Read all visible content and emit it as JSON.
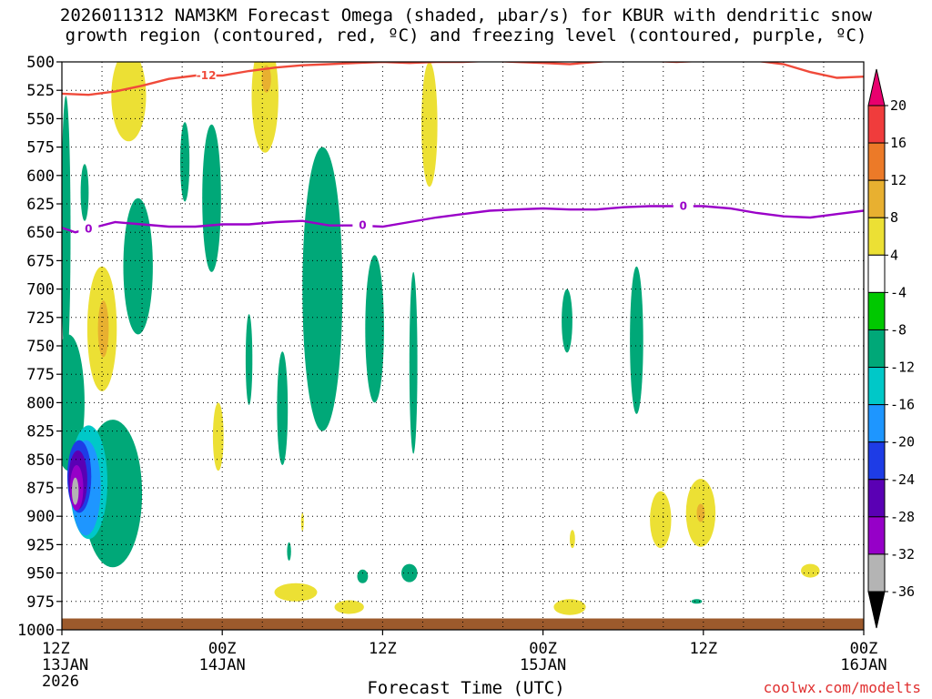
{
  "title_line1": "2026011312 NAM3KM Forecast Omega (shaded, μbar/s) for KBUR with dendritic snow",
  "title_line2": "growth region (contoured, red, ºC) and freezing level (contoured, purple, ºC)",
  "credit": "coolwx.com/modelts",
  "chart_data": {
    "type": "heatmap",
    "title": "2026011312 NAM3KM Forecast Omega (shaded, μbar/s) for KBUR with dendritic snow growth region (contoured, red, ºC) and freezing level (contoured, purple, ºC)",
    "xlabel": "Forecast Time (UTC)",
    "ylabel": "",
    "x_range_hours": [
      0,
      60
    ],
    "ylim_hPa": [
      1000,
      500
    ],
    "y_axis_inverted": true,
    "grid": true,
    "y_ticks": [
      "500",
      "525",
      "550",
      "575",
      "600",
      "625",
      "650",
      "675",
      "700",
      "725",
      "750",
      "775",
      "800",
      "825",
      "850",
      "875",
      "900",
      "925",
      "950",
      "975",
      "1000"
    ],
    "x_ticks": [
      {
        "hour": 0,
        "lines": [
          "12Z",
          "13JAN",
          "2026"
        ]
      },
      {
        "hour": 12,
        "lines": [
          "00Z",
          "14JAN"
        ]
      },
      {
        "hour": 24,
        "lines": [
          "12Z"
        ]
      },
      {
        "hour": 36,
        "lines": [
          "00Z",
          "15JAN"
        ]
      },
      {
        "hour": 48,
        "lines": [
          "12Z"
        ]
      },
      {
        "hour": 60,
        "lines": [
          "00Z",
          "16JAN"
        ]
      }
    ],
    "colorbar": {
      "levels": [
        "20",
        "16",
        "12",
        "8",
        "4",
        "-4",
        "-8",
        "-12",
        "-16",
        "-20",
        "-24",
        "-28",
        "-32",
        "-36"
      ],
      "colors": [
        "#e8006e",
        "#f03c3c",
        "#ec7a28",
        "#e8b030",
        "#ece034",
        "#ffffff",
        "#00c800",
        "#00a878",
        "#00c8c8",
        "#1e96ff",
        "#1e3ce6",
        "#5a00b4",
        "#9600c8",
        "#b4b4b4",
        "#000000"
      ]
    },
    "dendritic_contour": {
      "label": "-12",
      "color": "#f04a3a",
      "points": [
        [
          0,
          528
        ],
        [
          2,
          529
        ],
        [
          4,
          526
        ],
        [
          6,
          521
        ],
        [
          8,
          515
        ],
        [
          10,
          512
        ],
        [
          12,
          512
        ],
        [
          14,
          508
        ],
        [
          16,
          505
        ],
        [
          18,
          503
        ],
        [
          20,
          502
        ],
        [
          22,
          501
        ],
        [
          24,
          500
        ],
        [
          26,
          501
        ],
        [
          28,
          500
        ],
        [
          30,
          500
        ],
        [
          32,
          499
        ],
        [
          34,
          500
        ],
        [
          36,
          501
        ],
        [
          38,
          502
        ],
        [
          40,
          500
        ],
        [
          42,
          498
        ],
        [
          44,
          499
        ],
        [
          46,
          500
        ],
        [
          48,
          499
        ],
        [
          50,
          499
        ],
        [
          52,
          499
        ],
        [
          54,
          502
        ],
        [
          56,
          509
        ],
        [
          58,
          514
        ],
        [
          60,
          513
        ]
      ]
    },
    "freezing_contour": {
      "label": "0",
      "color": "#9a00c8",
      "points": [
        [
          0,
          646
        ],
        [
          1,
          650
        ],
        [
          2,
          647
        ],
        [
          4,
          641
        ],
        [
          6,
          643
        ],
        [
          8,
          645
        ],
        [
          10,
          645
        ],
        [
          12,
          643
        ],
        [
          14,
          643
        ],
        [
          16,
          641
        ],
        [
          18,
          640
        ],
        [
          20,
          644
        ],
        [
          22,
          644
        ],
        [
          24,
          645
        ],
        [
          26,
          641
        ],
        [
          28,
          637
        ],
        [
          30,
          634
        ],
        [
          32,
          631
        ],
        [
          34,
          630
        ],
        [
          36,
          629
        ],
        [
          38,
          630
        ],
        [
          40,
          630
        ],
        [
          42,
          628
        ],
        [
          44,
          627
        ],
        [
          46,
          627
        ],
        [
          48,
          627
        ],
        [
          50,
          629
        ],
        [
          52,
          633
        ],
        [
          54,
          636
        ],
        [
          56,
          637
        ],
        [
          58,
          634
        ],
        [
          60,
          631
        ]
      ]
    },
    "omega_regions": [
      {
        "level": "-8",
        "center": [
          0.3,
          650
        ],
        "half_width_h": 0.35,
        "half_height_hPa": 120
      },
      {
        "level": "-8",
        "center": [
          0.5,
          800
        ],
        "half_width_h": 1.2,
        "half_height_hPa": 60
      },
      {
        "level": "-8",
        "center": [
          3.8,
          880
        ],
        "half_width_h": 2.2,
        "half_height_hPa": 65
      },
      {
        "level": "-12",
        "center": [
          2.0,
          870
        ],
        "half_width_h": 1.4,
        "half_height_hPa": 50
      },
      {
        "level": "-16",
        "center": [
          1.8,
          875
        ],
        "half_width_h": 1.1,
        "half_height_hPa": 42
      },
      {
        "level": "-20",
        "center": [
          1.3,
          865
        ],
        "half_width_h": 0.9,
        "half_height_hPa": 32
      },
      {
        "level": "-24",
        "center": [
          1.2,
          868
        ],
        "half_width_h": 0.7,
        "half_height_hPa": 26
      },
      {
        "level": "-28",
        "center": [
          1.1,
          875
        ],
        "half_width_h": 0.5,
        "half_height_hPa": 20
      },
      {
        "level": "-32",
        "center": [
          1.0,
          878
        ],
        "half_width_h": 0.25,
        "half_height_hPa": 12
      },
      {
        "level": "-8",
        "center": [
          1.7,
          615
        ],
        "half_width_h": 0.3,
        "half_height_hPa": 25
      },
      {
        "level": "-8",
        "center": [
          5.7,
          680
        ],
        "half_width_h": 1.1,
        "half_height_hPa": 60
      },
      {
        "level": "-8",
        "center": [
          9.2,
          588
        ],
        "half_width_h": 0.35,
        "half_height_hPa": 35
      },
      {
        "level": "-8",
        "center": [
          11.2,
          620
        ],
        "half_width_h": 0.7,
        "half_height_hPa": 65
      },
      {
        "level": "-8",
        "center": [
          14.0,
          762
        ],
        "half_width_h": 0.25,
        "half_height_hPa": 40
      },
      {
        "level": "-8",
        "center": [
          16.5,
          805
        ],
        "half_width_h": 0.4,
        "half_height_hPa": 50
      },
      {
        "level": "-8",
        "center": [
          19.5,
          700
        ],
        "half_width_h": 1.5,
        "half_height_hPa": 125
      },
      {
        "level": "-8",
        "center": [
          23.4,
          735
        ],
        "half_width_h": 0.7,
        "half_height_hPa": 65
      },
      {
        "level": "-8",
        "center": [
          26.3,
          765
        ],
        "half_width_h": 0.3,
        "half_height_hPa": 80
      },
      {
        "level": "-8",
        "center": [
          37.8,
          728
        ],
        "half_width_h": 0.4,
        "half_height_hPa": 28
      },
      {
        "level": "-8",
        "center": [
          43.0,
          745
        ],
        "half_width_h": 0.5,
        "half_height_hPa": 65
      },
      {
        "level": "-8",
        "center": [
          17.0,
          931
        ],
        "half_width_h": 0.15,
        "half_height_hPa": 8
      },
      {
        "level": "-8",
        "center": [
          22.5,
          953
        ],
        "half_width_h": 0.4,
        "half_height_hPa": 6
      },
      {
        "level": "-8",
        "center": [
          26.0,
          950
        ],
        "half_width_h": 0.6,
        "half_height_hPa": 8
      },
      {
        "level": "-8",
        "center": [
          47.5,
          975
        ],
        "half_width_h": 0.4,
        "half_height_hPa": 2
      },
      {
        "level": "4",
        "center": [
          5.0,
          530
        ],
        "half_width_h": 1.3,
        "half_height_hPa": 40
      },
      {
        "level": "4",
        "center": [
          15.2,
          530
        ],
        "half_width_h": 1.0,
        "half_height_hPa": 50
      },
      {
        "level": "4",
        "center": [
          27.5,
          555
        ],
        "half_width_h": 0.6,
        "half_height_hPa": 55
      },
      {
        "level": "4",
        "center": [
          3.0,
          735
        ],
        "half_width_h": 1.1,
        "half_height_hPa": 55
      },
      {
        "level": "8",
        "center": [
          3.1,
          735
        ],
        "half_width_h": 0.4,
        "half_height_hPa": 25
      },
      {
        "level": "8",
        "center": [
          15.3,
          515
        ],
        "half_width_h": 0.35,
        "half_height_hPa": 12
      },
      {
        "level": "4",
        "center": [
          11.7,
          830
        ],
        "half_width_h": 0.4,
        "half_height_hPa": 30
      },
      {
        "level": "4",
        "center": [
          17.5,
          967
        ],
        "half_width_h": 1.6,
        "half_height_hPa": 8
      },
      {
        "level": "4",
        "center": [
          21.5,
          980
        ],
        "half_width_h": 1.1,
        "half_height_hPa": 6
      },
      {
        "level": "4",
        "center": [
          38.0,
          980
        ],
        "half_width_h": 1.2,
        "half_height_hPa": 7
      },
      {
        "level": "4",
        "center": [
          44.8,
          903
        ],
        "half_width_h": 0.8,
        "half_height_hPa": 25
      },
      {
        "level": "4",
        "center": [
          47.8,
          897
        ],
        "half_width_h": 1.1,
        "half_height_hPa": 30
      },
      {
        "level": "8",
        "center": [
          47.8,
          897
        ],
        "half_width_h": 0.3,
        "half_height_hPa": 8
      },
      {
        "level": "4",
        "center": [
          56.0,
          948
        ],
        "half_width_h": 0.7,
        "half_height_hPa": 6
      },
      {
        "level": "4",
        "center": [
          38.2,
          920
        ],
        "half_width_h": 0.2,
        "half_height_hPa": 8
      },
      {
        "level": "4",
        "center": [
          18.0,
          905
        ],
        "half_width_h": 0.1,
        "half_height_hPa": 8
      }
    ],
    "surface_fill_color": "#9c5a2c"
  }
}
